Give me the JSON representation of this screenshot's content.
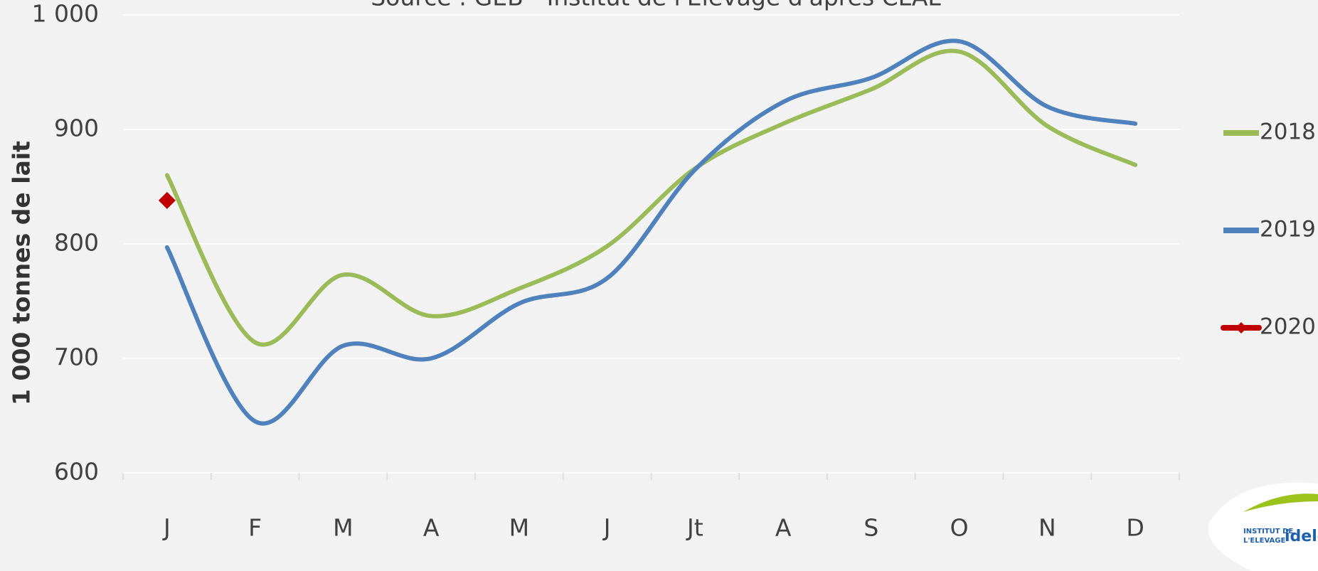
{
  "chart_data": {
    "type": "line",
    "subtitle": "Source : GEB - Institut de l'Elevage d'après CLAL",
    "y_label": "1 000 tonnes de lait",
    "categories": [
      "J",
      "F",
      "M",
      "A",
      "M",
      "J",
      "Jt",
      "A",
      "S",
      "O",
      "N",
      "D"
    ],
    "series": [
      {
        "name": "2018",
        "color": "#9bbb59",
        "values": [
          860,
          714,
          773,
          737,
          761,
          798,
          866,
          905,
          935,
          968,
          903,
          869
        ]
      },
      {
        "name": "2019",
        "color": "#4f81bd",
        "values": [
          797,
          645,
          711,
          700,
          748,
          770,
          865,
          924,
          945,
          977,
          920,
          905
        ]
      },
      {
        "name": "2020",
        "color": "#c00000",
        "marker": "diamond",
        "values": [
          838,
          null,
          null,
          null,
          null,
          null,
          null,
          null,
          null,
          null,
          null,
          null
        ]
      }
    ],
    "ylim": [
      600,
      1000
    ],
    "yticks": [
      600,
      700,
      800,
      900,
      {
        "value": 1000,
        "label": "1 000"
      }
    ],
    "grid": true,
    "legend": "right",
    "logo": {
      "line1": "INSTITUT DE",
      "line2": "L'ELEVAGE",
      "brand": "idele"
    }
  }
}
